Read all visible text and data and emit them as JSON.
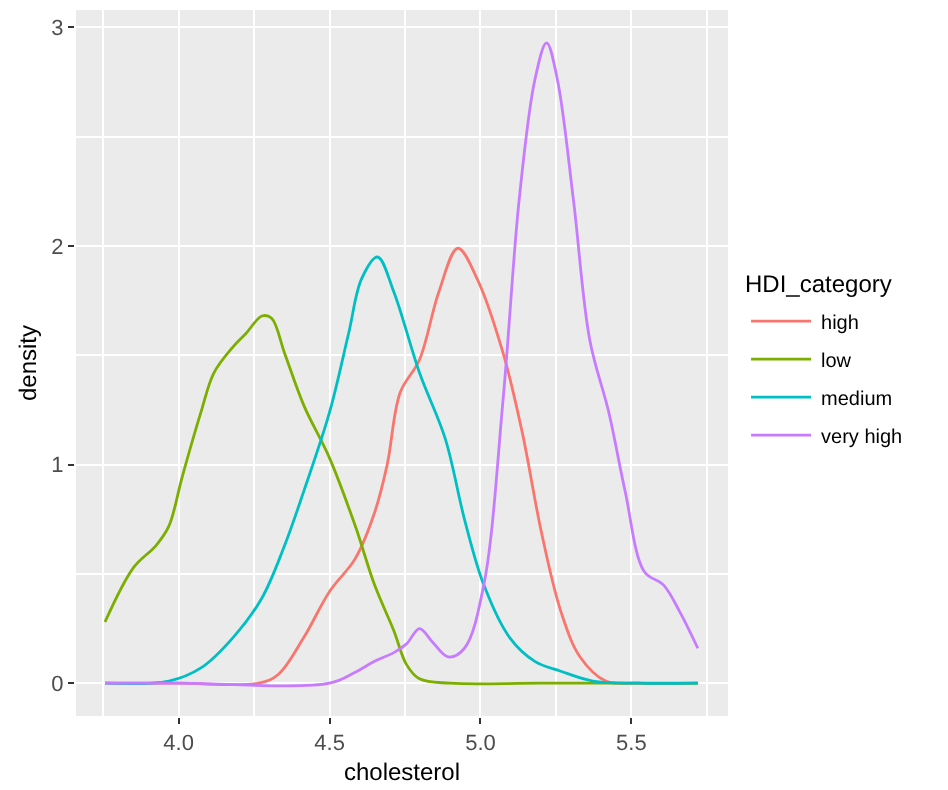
{
  "chart_data": {
    "type": "line",
    "xlabel": "cholesterol",
    "ylabel": "density",
    "legend_title": "HDI_category",
    "legend": "right",
    "grid": true,
    "marker": "none",
    "line_style": "solid",
    "xlim": [
      3.66,
      5.82
    ],
    "ylim": [
      -0.15,
      3.08
    ],
    "xticks": [
      {
        "value": 4,
        "label": "4.0"
      },
      4.5,
      {
        "value": 5,
        "label": "5.0"
      },
      5.5
    ],
    "yticks": [
      0,
      1,
      2,
      3
    ],
    "series": [
      {
        "name": "high",
        "color": "#f8766d",
        "x": [
          3.756,
          4.0,
          4.266,
          4.33,
          4.415,
          4.5,
          4.585,
          4.649,
          4.691,
          4.734,
          4.798,
          4.862,
          4.925,
          4.989,
          5.075,
          5.138,
          5.202,
          5.266,
          5.33,
          5.415,
          5.52,
          5.72
        ],
        "values": [
          0,
          0,
          0,
          0.04,
          0.21,
          0.42,
          0.57,
          0.78,
          1.0,
          1.33,
          1.48,
          1.79,
          1.99,
          1.85,
          1.51,
          1.15,
          0.69,
          0.33,
          0.12,
          0.01,
          0,
          0
        ]
      },
      {
        "name": "low",
        "color": "#7cae00",
        "x": [
          3.756,
          3.851,
          3.925,
          3.968,
          4.011,
          4.074,
          4.117,
          4.181,
          4.223,
          4.276,
          4.308,
          4.351,
          4.415,
          4.5,
          4.585,
          4.649,
          4.713,
          4.755,
          4.798,
          4.9,
          5.2,
          5.72
        ],
        "values": [
          0.28,
          0.53,
          0.63,
          0.72,
          0.94,
          1.24,
          1.42,
          1.54,
          1.6,
          1.68,
          1.67,
          1.51,
          1.27,
          1.03,
          0.72,
          0.45,
          0.24,
          0.085,
          0.02,
          0,
          0,
          0
        ]
      },
      {
        "name": "medium",
        "color": "#00bfc4",
        "x": [
          3.756,
          3.968,
          4.074,
          4.181,
          4.276,
          4.351,
          4.415,
          4.5,
          4.563,
          4.606,
          4.659,
          4.713,
          4.798,
          4.883,
          4.947,
          5.011,
          5.096,
          5.18,
          5.266,
          5.372,
          5.52,
          5.72
        ],
        "values": [
          0,
          0.01,
          0.07,
          0.21,
          0.39,
          0.63,
          0.88,
          1.24,
          1.6,
          1.85,
          1.95,
          1.79,
          1.42,
          1.12,
          0.75,
          0.45,
          0.21,
          0.1,
          0.055,
          0.01,
          0,
          0
        ]
      },
      {
        "name": "very high",
        "color": "#c77cff",
        "x": [
          3.756,
          4.0,
          4.5,
          4.585,
          4.649,
          4.713,
          4.755,
          4.798,
          4.84,
          4.893,
          4.947,
          5.011,
          5.075,
          5.128,
          5.18,
          5.219,
          5.255,
          5.308,
          5.362,
          5.425,
          5.479,
          5.543,
          5.606,
          5.659,
          5.72
        ],
        "values": [
          0,
          0,
          0,
          0.05,
          0.1,
          0.14,
          0.18,
          0.25,
          0.19,
          0.12,
          0.16,
          0.45,
          1.3,
          2.21,
          2.76,
          2.93,
          2.76,
          2.21,
          1.57,
          1.24,
          0.88,
          0.51,
          0.45,
          0.33,
          0.16
        ]
      }
    ]
  }
}
